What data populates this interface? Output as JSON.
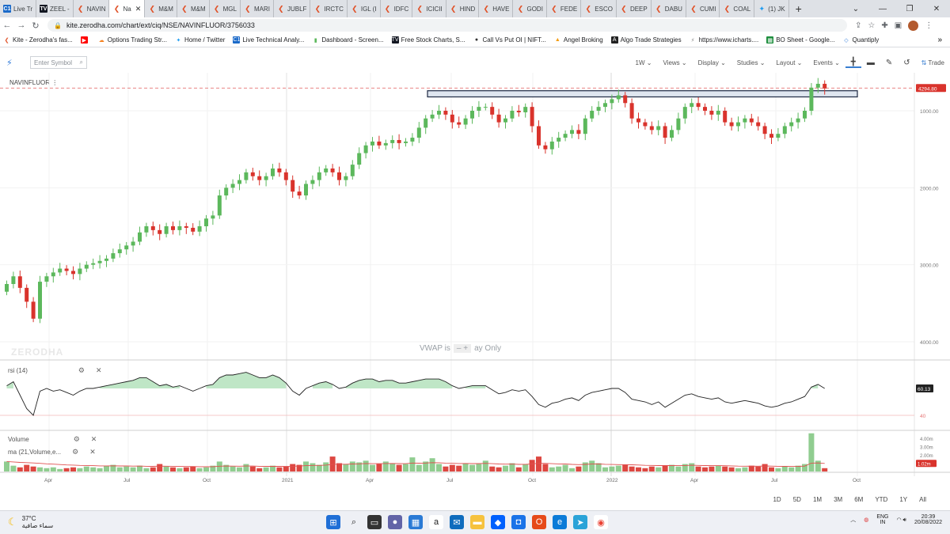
{
  "browser": {
    "tabs": [
      {
        "label": "Live Tr",
        "icon": "ci"
      },
      {
        "label": "ZEEL -",
        "icon": "tv"
      },
      {
        "label": "NAVIN",
        "icon": "kite"
      },
      {
        "label": "Na",
        "icon": "kite",
        "active": true
      },
      {
        "label": "M&M",
        "icon": "kite"
      },
      {
        "label": "M&M",
        "icon": "kite"
      },
      {
        "label": "MGL",
        "icon": "kite"
      },
      {
        "label": "MARI",
        "icon": "kite"
      },
      {
        "label": "JUBLF",
        "icon": "kite"
      },
      {
        "label": "IRCTC",
        "icon": "kite"
      },
      {
        "label": "IGL (I",
        "icon": "kite"
      },
      {
        "label": "IDFC",
        "icon": "kite"
      },
      {
        "label": "ICICII",
        "icon": "kite"
      },
      {
        "label": "HIND",
        "icon": "kite"
      },
      {
        "label": "HAVE",
        "icon": "kite"
      },
      {
        "label": "GODI",
        "icon": "kite"
      },
      {
        "label": "FEDE",
        "icon": "kite"
      },
      {
        "label": "ESCO",
        "icon": "kite"
      },
      {
        "label": "DEEP",
        "icon": "kite"
      },
      {
        "label": "DABU",
        "icon": "kite"
      },
      {
        "label": "CUMI",
        "icon": "kite"
      },
      {
        "label": "COAL",
        "icon": "kite"
      },
      {
        "label": "(1) JK",
        "icon": "tw"
      }
    ],
    "new_tab": "+",
    "url": "kite.zerodha.com/chart/ext/ciq/NSE/NAVINFLUOR/3756033",
    "bookmarks": [
      {
        "label": "Kite - Zerodha's fas...",
        "icon": "kite"
      },
      {
        "label": "",
        "icon": "youtube"
      },
      {
        "label": "Options Trading Str...",
        "icon": "cloud"
      },
      {
        "label": "Home / Twitter",
        "icon": "tw"
      },
      {
        "label": "Live Technical Analy...",
        "icon": "ci"
      },
      {
        "label": "Dashboard - Screen...",
        "icon": "bars"
      },
      {
        "label": "Free Stock Charts, S...",
        "icon": "tv"
      },
      {
        "label": "Call Vs Put OI | NIFT...",
        "icon": "circle"
      },
      {
        "label": "Angel Broking",
        "icon": "angel"
      },
      {
        "label": "Algo Trade Strategies",
        "icon": "algo"
      },
      {
        "label": "https://www.icharts....",
        "icon": "icharts"
      },
      {
        "label": "BO Sheet - Google...",
        "icon": "sheet"
      },
      {
        "label": "Quantiply",
        "icon": "quant"
      }
    ],
    "bookmarks_more": "»"
  },
  "toolbar": {
    "symbol_placeholder": "Enter Symbol",
    "items": [
      "1W",
      "Views",
      "Display",
      "Studies",
      "Layout",
      "Events"
    ],
    "trade_label": "Trade"
  },
  "chart": {
    "symbol": "NAVINFLUOR",
    "price_tag": "4294.80",
    "watermark": "ZERODHA",
    "vwap_note_left": "VWAP is",
    "vwap_note_right": "ay Only",
    "price_ticks": [
      "4000.00",
      "3000.00",
      "2000.00",
      "1000.00"
    ],
    "x_ticks": [
      "Apr",
      "Jul",
      "Oct",
      "2021",
      "Apr",
      "Jul",
      "Oct",
      "2022",
      "Apr",
      "Jul",
      "Oct"
    ],
    "rsi_label": "rsi (14)",
    "rsi_value": "60.13",
    "rsi_level": "40",
    "volume_label": "Volume",
    "ma_label": "ma (21,Volume,e...",
    "vol_ticks": [
      "4.00m",
      "3.00m",
      "2.00m"
    ],
    "vol_value": "1.02m",
    "colors": {
      "up": "#5cb85c",
      "down": "#d9332c",
      "rsi_fill": "#bfe6c6",
      "resistance": "#1f2a44"
    }
  },
  "chart_data": {
    "type": "candlestick",
    "symbol": "NAVINFLUOR",
    "interval": "1W",
    "y_ticks": [
      1000,
      2000,
      3000,
      4000
    ],
    "last_price": 4294.8,
    "resistance_zone": [
      4180,
      4260
    ],
    "closes": [
      1750,
      1850,
      1700,
      1520,
      1300,
      1780,
      1850,
      1900,
      1950,
      1920,
      1880,
      1950,
      2000,
      2020,
      2050,
      2080,
      2150,
      2200,
      2250,
      2300,
      2420,
      2500,
      2450,
      2400,
      2500,
      2450,
      2500,
      2480,
      2430,
      2500,
      2600,
      2640,
      2900,
      3000,
      3050,
      3100,
      3200,
      3150,
      3100,
      3150,
      3250,
      3200,
      3100,
      2950,
      2900,
      3050,
      3100,
      3200,
      3250,
      3200,
      3100,
      3150,
      3300,
      3450,
      3550,
      3600,
      3550,
      3580,
      3620,
      3580,
      3600,
      3650,
      3780,
      3900,
      3950,
      4000,
      3950,
      3850,
      3820,
      3900,
      4000,
      4050,
      4050,
      3950,
      3850,
      3900,
      4000,
      3980,
      4050,
      3800,
      3550,
      3500,
      3600,
      3650,
      3700,
      3750,
      3700,
      3900,
      4000,
      4050,
      4100,
      4150,
      4200,
      4100,
      3900,
      3850,
      3800,
      3750,
      3800,
      3650,
      3750,
      3900,
      4050,
      4100,
      4050,
      4000,
      3950,
      4000,
      3850,
      3800,
      3850,
      3900,
      3850,
      3800,
      3700,
      3650,
      3700,
      3800,
      3850,
      3900,
      4000,
      4300,
      4350,
      4290
    ],
    "rsi": [
      62,
      65,
      55,
      45,
      40,
      58,
      60,
      58,
      59,
      57,
      55,
      58,
      60,
      60,
      61,
      62,
      63,
      64,
      65,
      66,
      68,
      68,
      65,
      62,
      63,
      61,
      62,
      60,
      58,
      60,
      62,
      63,
      68,
      70,
      70,
      71,
      72,
      70,
      68,
      68,
      70,
      68,
      64,
      58,
      55,
      60,
      62,
      64,
      65,
      63,
      60,
      61,
      64,
      66,
      67,
      67,
      65,
      66,
      66,
      64,
      64,
      65,
      66,
      67,
      67,
      67,
      65,
      62,
      60,
      61,
      62,
      62,
      62,
      59,
      56,
      57,
      59,
      58,
      59,
      54,
      48,
      46,
      49,
      50,
      52,
      53,
      51,
      55,
      57,
      58,
      59,
      60,
      60,
      57,
      52,
      51,
      50,
      48,
      50,
      46,
      49,
      52,
      55,
      56,
      54,
      53,
      52,
      53,
      50,
      49,
      50,
      51,
      50,
      49,
      47,
      46,
      47,
      49,
      50,
      52,
      54,
      61,
      63,
      60
    ],
    "volume_m": [
      1.2,
      0.7,
      0.5,
      0.8,
      0.6,
      0.5,
      0.4,
      0.5,
      0.3,
      0.4,
      0.5,
      0.4,
      0.6,
      0.5,
      0.4,
      0.7,
      0.8,
      0.5,
      0.6,
      0.5,
      0.7,
      0.4,
      0.5,
      0.9,
      0.6,
      0.5,
      0.4,
      0.5,
      0.6,
      0.4,
      0.5,
      0.7,
      1.2,
      0.8,
      0.6,
      0.5,
      0.9,
      0.6,
      0.4,
      0.5,
      0.7,
      0.5,
      0.6,
      0.9,
      0.8,
      1.2,
      1.0,
      0.8,
      1.1,
      1.8,
      1.0,
      0.9,
      1.2,
      1.1,
      1.3,
      0.8,
      0.9,
      1.2,
      1.0,
      0.8,
      0.9,
      1.7,
      0.8,
      1.2,
      1.6,
      0.9,
      0.6,
      0.8,
      0.7,
      1.0,
      0.8,
      0.9,
      1.3,
      0.6,
      0.5,
      0.7,
      1.0,
      0.5,
      0.9,
      1.4,
      1.8,
      0.9,
      0.5,
      0.6,
      0.8,
      0.4,
      0.6,
      1.1,
      1.3,
      1.0,
      0.5,
      0.6,
      0.7,
      0.8,
      0.6,
      0.5,
      0.4,
      0.6,
      0.5,
      0.7,
      0.8,
      0.6,
      0.9,
      1.0,
      0.6,
      0.5,
      0.6,
      0.7,
      0.6,
      0.5,
      0.4,
      0.5,
      0.7,
      0.6,
      0.9,
      0.5,
      0.4,
      0.6,
      0.5,
      0.7,
      0.9,
      4.6,
      1.3,
      0.4
    ],
    "x_ticks": [
      "Apr",
      "Jul",
      "Oct",
      "2021",
      "Apr",
      "Jul",
      "Oct",
      "2022",
      "Apr",
      "Jul",
      "Oct"
    ]
  },
  "periods": [
    "1D",
    "5D",
    "1M",
    "3M",
    "6M",
    "YTD",
    "1Y",
    "All"
  ],
  "taskbar": {
    "temperature": "37°C",
    "weather_text": "سماء صافية",
    "language": "ENG",
    "region": "IN",
    "time": "20:39",
    "date": "20/08/2022"
  }
}
